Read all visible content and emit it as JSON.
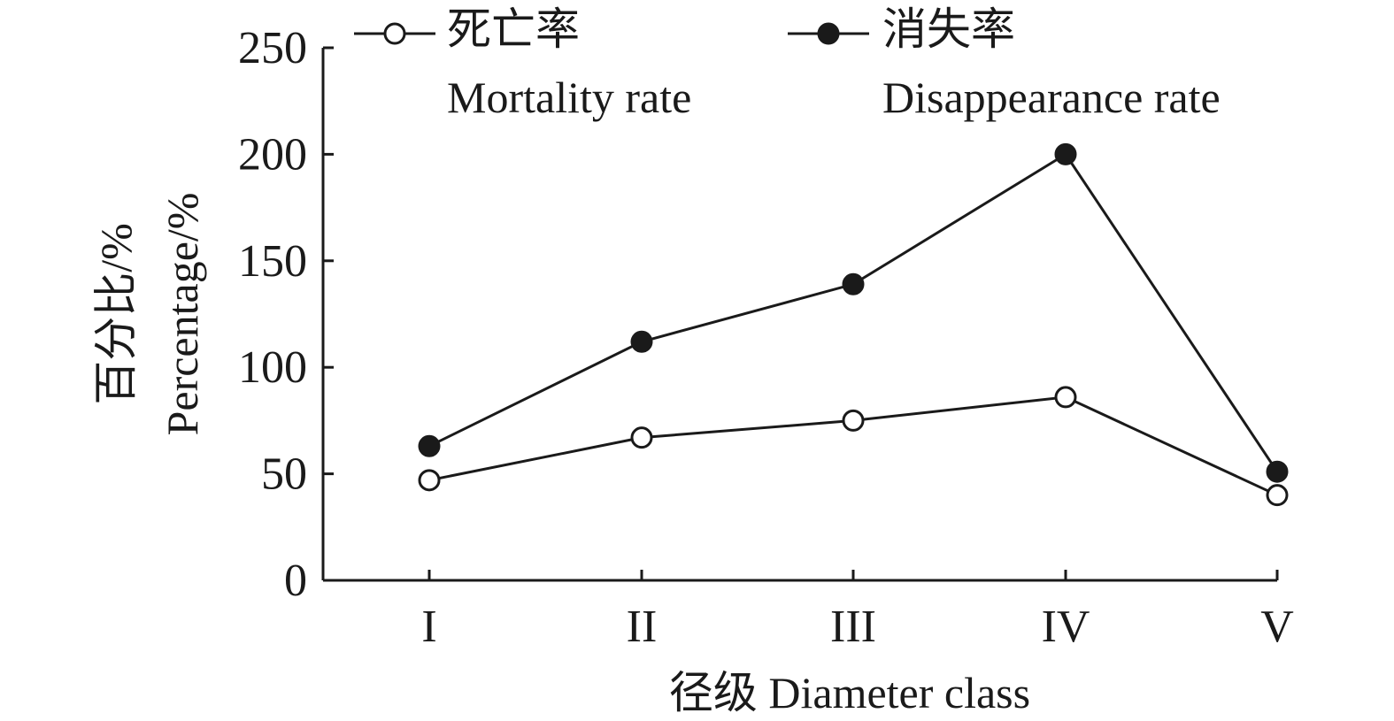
{
  "chart_data": {
    "type": "line",
    "categories": [
      "I",
      "II",
      "III",
      "IV",
      "V"
    ],
    "series": [
      {
        "name": "死亡率",
        "name_en": "Mortality rate",
        "marker": "open-circle",
        "values": [
          47,
          67,
          75,
          86,
          40
        ]
      },
      {
        "name": "消失率",
        "name_en": "Disappearance rate",
        "marker": "filled-circle",
        "values": [
          63,
          112,
          139,
          200,
          51
        ]
      }
    ],
    "xlabel": "径级 Diameter class",
    "ylabel_cn": "百分比/%",
    "ylabel_en": "Percentage/%",
    "ylim": [
      0,
      250
    ],
    "yticks": [
      0,
      50,
      100,
      150,
      200,
      250
    ],
    "grid": false,
    "legend_position": "top"
  }
}
